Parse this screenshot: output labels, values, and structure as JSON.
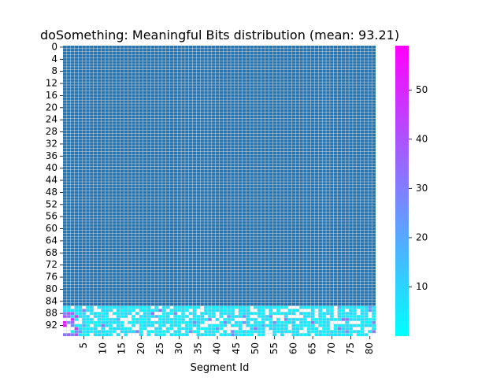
{
  "chart_data": {
    "type": "heatmap",
    "title": "doSomething: Meaningful Bits distribution (mean: 93.21)",
    "xlabel": "Segment Id",
    "ylabel": "",
    "x_tick_labels": [
      "5",
      "10",
      "15",
      "20",
      "25",
      "30",
      "35",
      "40",
      "45",
      "50",
      "55",
      "60",
      "65",
      "70",
      "75",
      "80"
    ],
    "y_tick_labels": [
      "0",
      "4",
      "8",
      "12",
      "16",
      "20",
      "24",
      "28",
      "32",
      "36",
      "40",
      "44",
      "48",
      "52",
      "56",
      "60",
      "64",
      "68",
      "72",
      "76",
      "80",
      "84",
      "88",
      "92"
    ],
    "n_columns": 82,
    "n_rows": 96,
    "grid": true,
    "colorbar": {
      "ticks": [
        "10",
        "20",
        "30",
        "40",
        "50"
      ],
      "min": 0,
      "max": 59,
      "colormap": "cool"
    },
    "background_color": "#2674b0",
    "grid_color": "#d8d8d8",
    "high_value_rows": [
      86,
      95
    ],
    "high_value_cells_note": "Rows 86-95 contain non-zero values mostly in the 0-15 range (cyan) with white gaps and scattered higher values up to ~40 (purple/magenta) in columns 0-3 and a few elsewhere"
  }
}
